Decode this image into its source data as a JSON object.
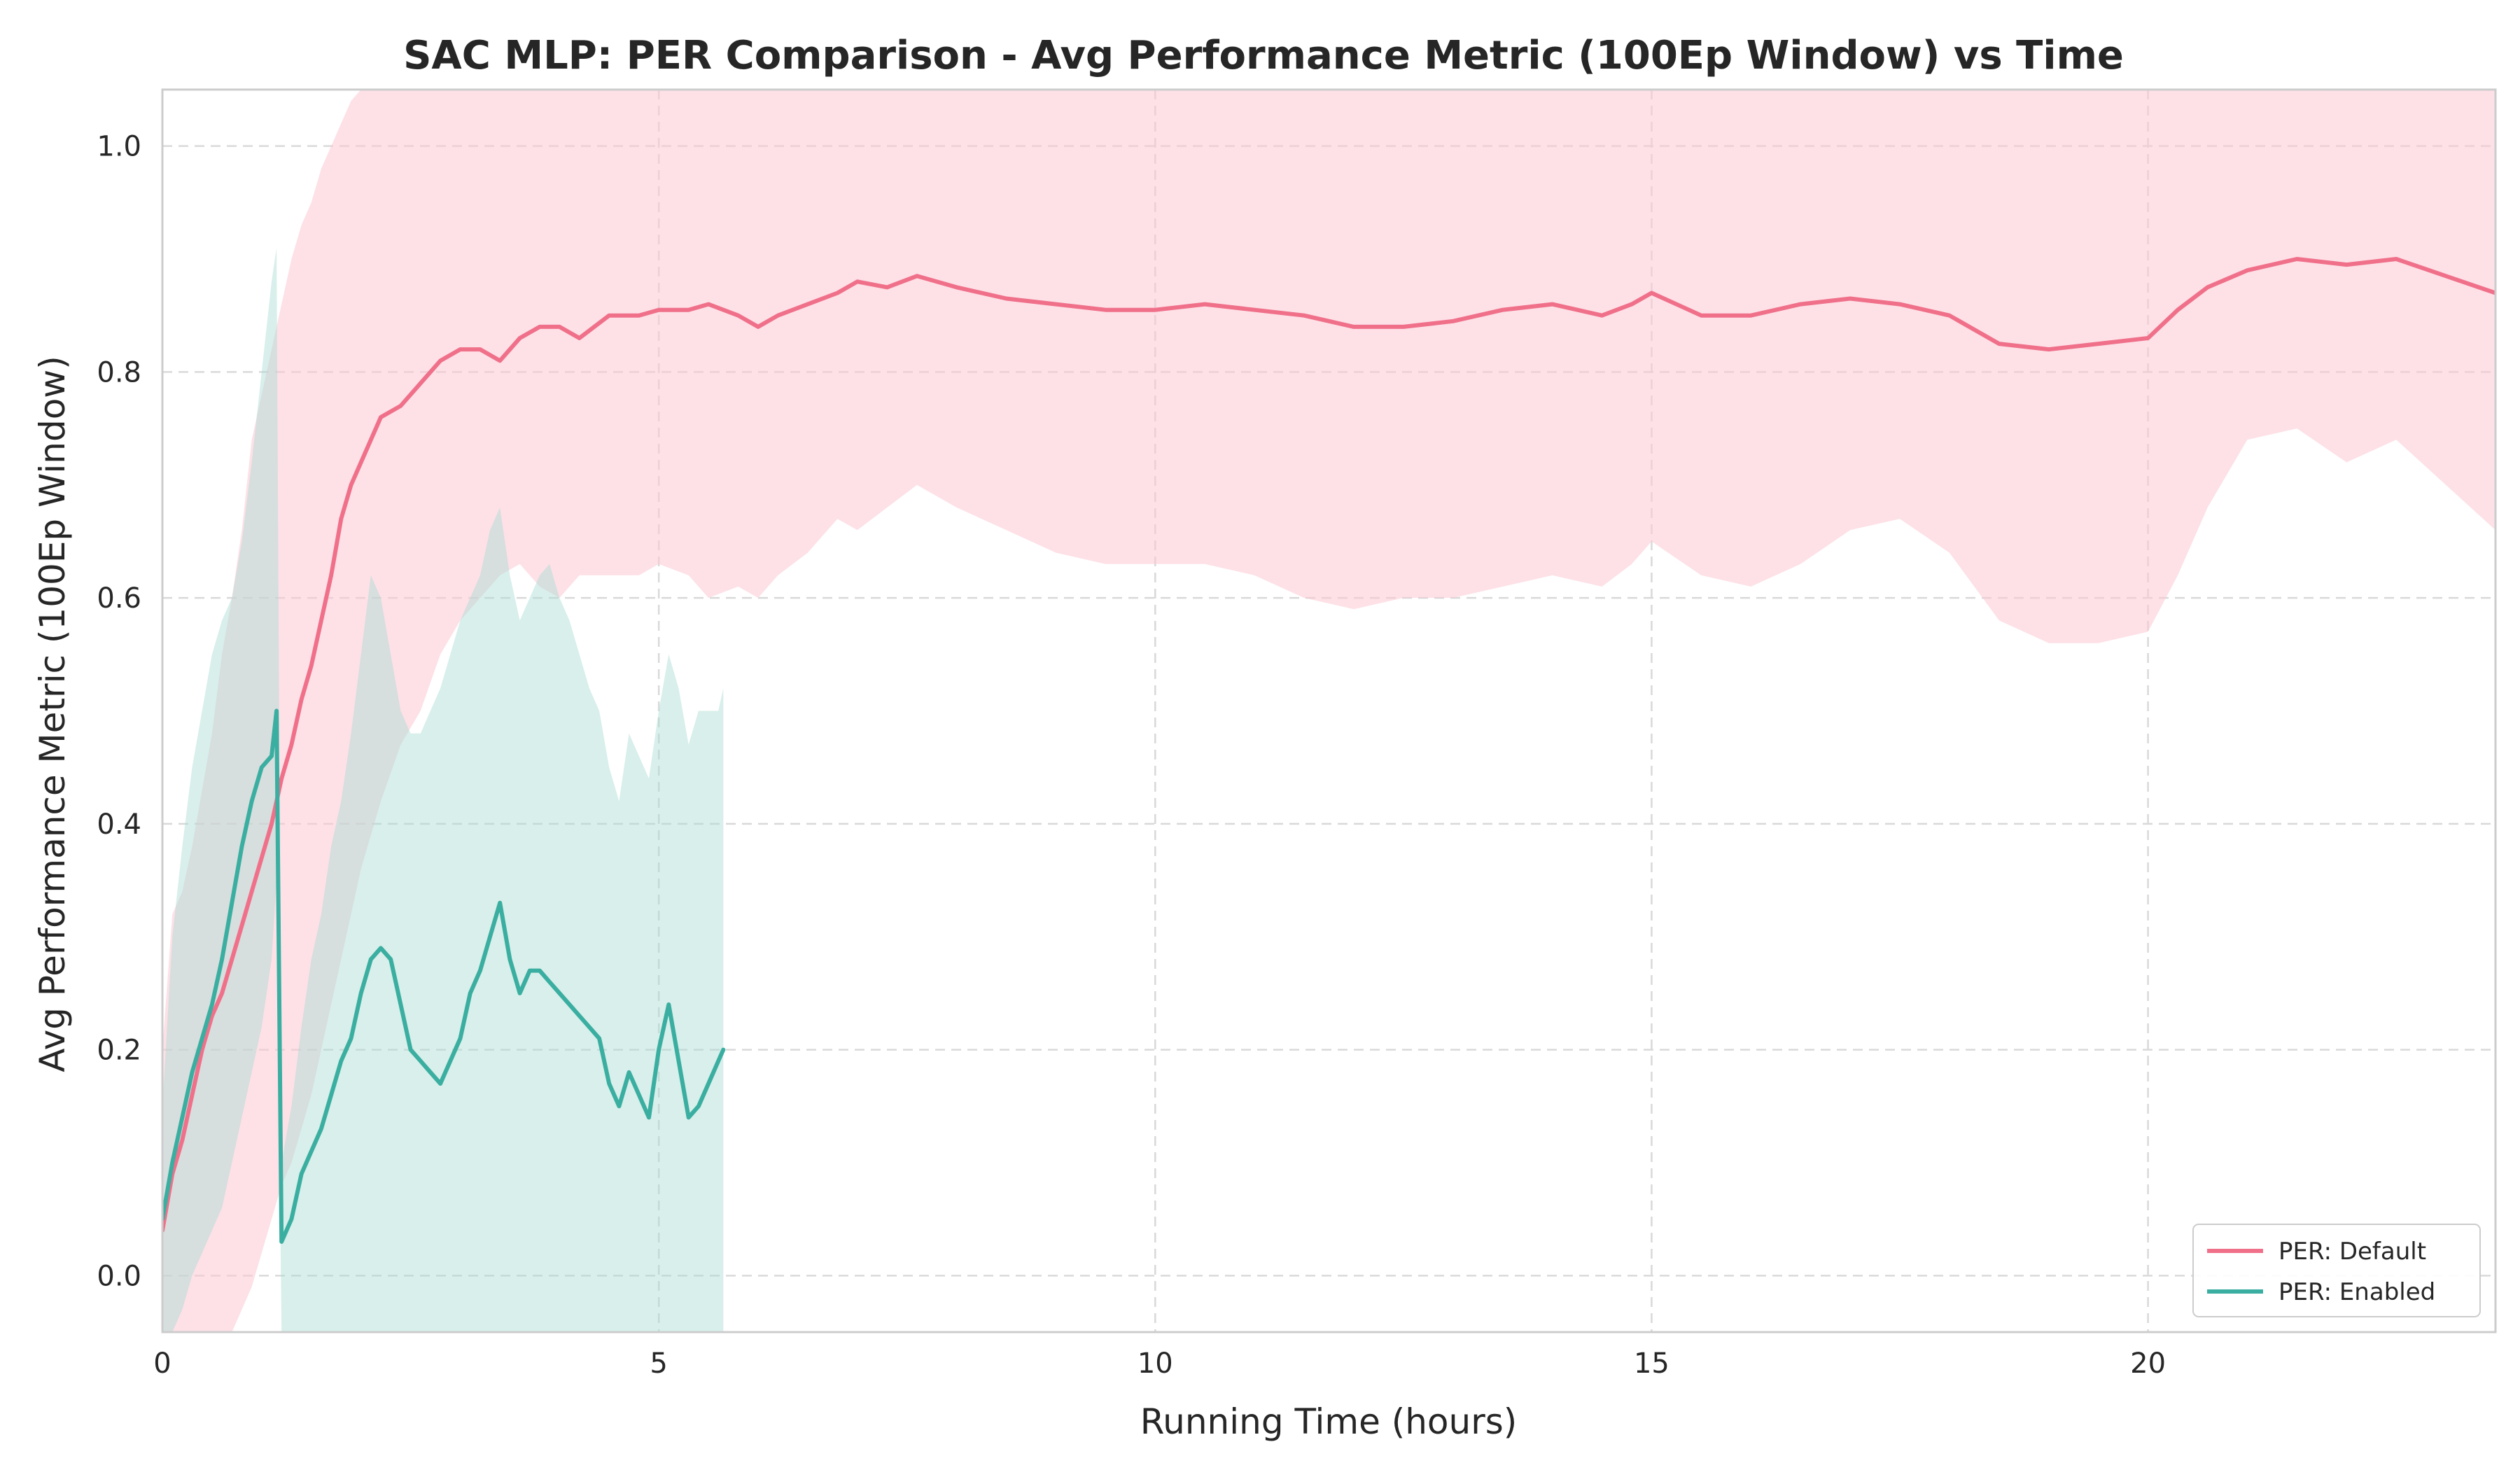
{
  "chart_data": {
    "type": "line",
    "title": "SAC MLP: PER Comparison - Avg Performance Metric (100Ep Window) vs Time",
    "xlabel": "Running Time (hours)",
    "ylabel": "Avg Performance Metric (100Ep Window)",
    "xlim": [
      0,
      23.5
    ],
    "ylim": [
      -0.05,
      1.05
    ],
    "xticks": [
      0,
      5,
      10,
      15,
      20
    ],
    "xtick_labels": [
      "0",
      "5",
      "10",
      "15",
      "20"
    ],
    "yticks": [
      0.0,
      0.2,
      0.4,
      0.6,
      0.8,
      1.0
    ],
    "ytick_labels": [
      "0.0",
      "0.2",
      "0.4",
      "0.6",
      "0.8",
      "1.0"
    ],
    "grid": true,
    "legend_position": "lower-right",
    "series": [
      {
        "name": "PER: Default",
        "color": "#f0708a",
        "band_color": "#fbc8d3",
        "x": [
          0.0,
          0.1,
          0.2,
          0.3,
          0.4,
          0.5,
          0.6,
          0.7,
          0.8,
          0.9,
          1.0,
          1.1,
          1.2,
          1.3,
          1.4,
          1.5,
          1.6,
          1.7,
          1.8,
          1.9,
          2.0,
          2.2,
          2.4,
          2.6,
          2.8,
          3.0,
          3.2,
          3.4,
          3.6,
          3.8,
          4.0,
          4.2,
          4.5,
          4.8,
          5.0,
          5.3,
          5.5,
          5.8,
          6.0,
          6.2,
          6.5,
          6.8,
          7.0,
          7.3,
          7.6,
          8.0,
          8.5,
          9.0,
          9.5,
          10.0,
          10.5,
          11.0,
          11.5,
          12.0,
          12.5,
          13.0,
          13.5,
          14.0,
          14.5,
          14.8,
          15.0,
          15.5,
          16.0,
          16.5,
          17.0,
          17.5,
          18.0,
          18.5,
          19.0,
          19.5,
          20.0,
          20.3,
          20.6,
          21.0,
          21.5,
          22.0,
          22.5,
          23.0,
          23.5
        ],
        "values": [
          0.04,
          0.09,
          0.12,
          0.16,
          0.2,
          0.23,
          0.25,
          0.28,
          0.31,
          0.34,
          0.37,
          0.4,
          0.44,
          0.47,
          0.51,
          0.54,
          0.58,
          0.62,
          0.67,
          0.7,
          0.72,
          0.76,
          0.77,
          0.79,
          0.81,
          0.82,
          0.82,
          0.81,
          0.83,
          0.84,
          0.84,
          0.83,
          0.85,
          0.85,
          0.855,
          0.855,
          0.86,
          0.85,
          0.84,
          0.85,
          0.86,
          0.87,
          0.88,
          0.875,
          0.885,
          0.875,
          0.865,
          0.86,
          0.855,
          0.855,
          0.86,
          0.855,
          0.85,
          0.84,
          0.84,
          0.845,
          0.855,
          0.86,
          0.85,
          0.86,
          0.87,
          0.85,
          0.85,
          0.86,
          0.865,
          0.86,
          0.85,
          0.825,
          0.82,
          0.825,
          0.83,
          0.855,
          0.875,
          0.89,
          0.9,
          0.895,
          0.9,
          0.885,
          0.87
        ],
        "upper": [
          0.2,
          0.32,
          0.34,
          0.38,
          0.43,
          0.48,
          0.55,
          0.6,
          0.66,
          0.74,
          0.78,
          0.82,
          0.86,
          0.9,
          0.93,
          0.95,
          0.98,
          1.0,
          1.02,
          1.04,
          1.05,
          1.05,
          1.05,
          1.05,
          1.05,
          1.05,
          1.05,
          1.05,
          1.05,
          1.05,
          1.05,
          1.05,
          1.05,
          1.05,
          1.05,
          1.05,
          1.05,
          1.05,
          1.05,
          1.05,
          1.05,
          1.05,
          1.05,
          1.05,
          1.05,
          1.05,
          1.05,
          1.05,
          1.05,
          1.05,
          1.05,
          1.05,
          1.05,
          1.05,
          1.05,
          1.05,
          1.05,
          1.05,
          1.05,
          1.05,
          1.05,
          1.05,
          1.05,
          1.05,
          1.05,
          1.05,
          1.05,
          1.05,
          1.05,
          1.05,
          1.05,
          1.05,
          1.05,
          1.05,
          1.05,
          1.05,
          1.05,
          1.05,
          1.05
        ],
        "lower": [
          -0.05,
          -0.05,
          -0.05,
          -0.05,
          -0.05,
          -0.05,
          -0.05,
          -0.05,
          -0.03,
          -0.01,
          0.02,
          0.05,
          0.08,
          0.1,
          0.13,
          0.16,
          0.2,
          0.24,
          0.28,
          0.32,
          0.36,
          0.42,
          0.47,
          0.5,
          0.55,
          0.58,
          0.6,
          0.62,
          0.63,
          0.61,
          0.6,
          0.62,
          0.62,
          0.62,
          0.63,
          0.62,
          0.6,
          0.61,
          0.6,
          0.62,
          0.64,
          0.67,
          0.66,
          0.68,
          0.7,
          0.68,
          0.66,
          0.64,
          0.63,
          0.63,
          0.63,
          0.62,
          0.6,
          0.59,
          0.6,
          0.6,
          0.61,
          0.62,
          0.61,
          0.63,
          0.65,
          0.62,
          0.61,
          0.63,
          0.66,
          0.67,
          0.64,
          0.58,
          0.56,
          0.56,
          0.57,
          0.62,
          0.68,
          0.74,
          0.75,
          0.72,
          0.74,
          0.7,
          0.66
        ]
      },
      {
        "name": "PER: Enabled",
        "color": "#3aaea0",
        "band_color": "#a8dcd3",
        "x": [
          0.0,
          0.1,
          0.2,
          0.3,
          0.4,
          0.5,
          0.6,
          0.7,
          0.8,
          0.9,
          1.0,
          1.1,
          1.15,
          1.2,
          1.3,
          1.4,
          1.5,
          1.6,
          1.7,
          1.8,
          1.9,
          2.0,
          2.1,
          2.2,
          2.3,
          2.4,
          2.5,
          2.6,
          2.7,
          2.8,
          2.9,
          3.0,
          3.1,
          3.2,
          3.3,
          3.4,
          3.5,
          3.6,
          3.7,
          3.8,
          3.9,
          4.0,
          4.1,
          4.2,
          4.3,
          4.4,
          4.5,
          4.6,
          4.7,
          4.8,
          4.9,
          5.0,
          5.1,
          5.2,
          5.3,
          5.4,
          5.5,
          5.6,
          5.65
        ],
        "values": [
          0.05,
          0.1,
          0.14,
          0.18,
          0.21,
          0.24,
          0.28,
          0.33,
          0.38,
          0.42,
          0.45,
          0.46,
          0.5,
          0.03,
          0.05,
          0.09,
          0.11,
          0.13,
          0.16,
          0.19,
          0.21,
          0.25,
          0.28,
          0.29,
          0.28,
          0.24,
          0.2,
          0.19,
          0.18,
          0.17,
          0.19,
          0.21,
          0.25,
          0.27,
          0.3,
          0.33,
          0.28,
          0.25,
          0.27,
          0.27,
          0.26,
          0.25,
          0.24,
          0.23,
          0.22,
          0.21,
          0.17,
          0.15,
          0.18,
          0.16,
          0.14,
          0.2,
          0.24,
          0.19,
          0.14,
          0.15,
          0.17,
          0.19,
          0.2
        ],
        "upper": [
          0.15,
          0.3,
          0.38,
          0.45,
          0.5,
          0.55,
          0.58,
          0.6,
          0.65,
          0.72,
          0.8,
          0.88,
          0.91,
          0.1,
          0.15,
          0.22,
          0.28,
          0.32,
          0.38,
          0.42,
          0.48,
          0.55,
          0.62,
          0.6,
          0.55,
          0.5,
          0.48,
          0.48,
          0.5,
          0.52,
          0.55,
          0.58,
          0.6,
          0.62,
          0.66,
          0.68,
          0.62,
          0.58,
          0.6,
          0.62,
          0.63,
          0.6,
          0.58,
          0.55,
          0.52,
          0.5,
          0.45,
          0.42,
          0.48,
          0.46,
          0.44,
          0.5,
          0.55,
          0.52,
          0.47,
          0.5,
          0.5,
          0.5,
          0.52
        ],
        "lower": [
          -0.05,
          -0.05,
          -0.03,
          0.0,
          0.02,
          0.04,
          0.06,
          0.1,
          0.14,
          0.18,
          0.22,
          0.28,
          0.35,
          -0.05,
          -0.05,
          -0.05,
          -0.05,
          -0.05,
          -0.05,
          -0.05,
          -0.05,
          -0.05,
          -0.05,
          -0.05,
          -0.05,
          -0.05,
          -0.05,
          -0.05,
          -0.05,
          -0.05,
          -0.05,
          -0.05,
          -0.05,
          -0.05,
          -0.05,
          -0.05,
          -0.05,
          -0.05,
          -0.05,
          -0.05,
          -0.05,
          -0.05,
          -0.05,
          -0.05,
          -0.05,
          -0.05,
          -0.05,
          -0.05,
          -0.05,
          -0.05,
          -0.05,
          -0.05,
          -0.05,
          -0.05,
          -0.05,
          -0.05,
          -0.05,
          -0.05,
          -0.05
        ]
      }
    ]
  }
}
